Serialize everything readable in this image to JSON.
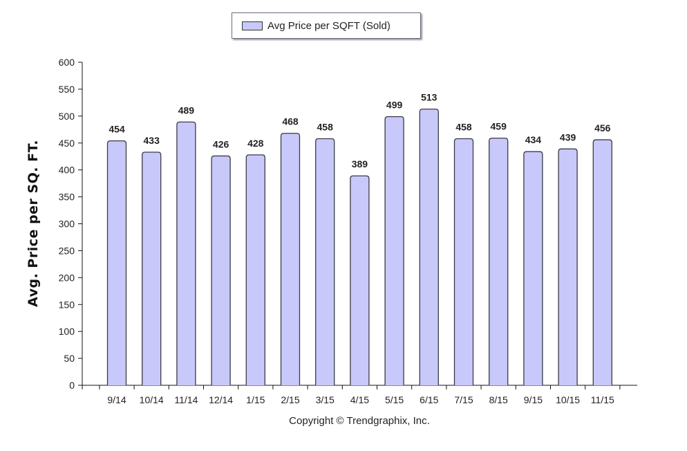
{
  "legend": {
    "label": "Avg Price per SQFT (Sold)"
  },
  "copyright": "Copyright © Trendgraphix, Inc.",
  "chart_data": {
    "type": "bar",
    "title": "",
    "xlabel": "",
    "ylabel": "Avg. Price per SQ. FT.",
    "ylim": [
      0,
      600
    ],
    "yticks": [
      0,
      50,
      100,
      150,
      200,
      250,
      300,
      350,
      400,
      450,
      500,
      550,
      600
    ],
    "categories": [
      "9/14",
      "10/14",
      "11/14",
      "12/14",
      "1/15",
      "2/15",
      "3/15",
      "4/15",
      "5/15",
      "6/15",
      "7/15",
      "8/15",
      "9/15",
      "10/15",
      "11/15"
    ],
    "series": [
      {
        "name": "Avg Price per SQFT (Sold)",
        "values": [
          454,
          433,
          489,
          426,
          428,
          468,
          458,
          389,
          499,
          513,
          458,
          459,
          434,
          439,
          456
        ]
      }
    ],
    "bar_color": "#c8c8fa",
    "bar_border_color": "#3a3a44",
    "grid": false,
    "legend_position": "top-center"
  }
}
